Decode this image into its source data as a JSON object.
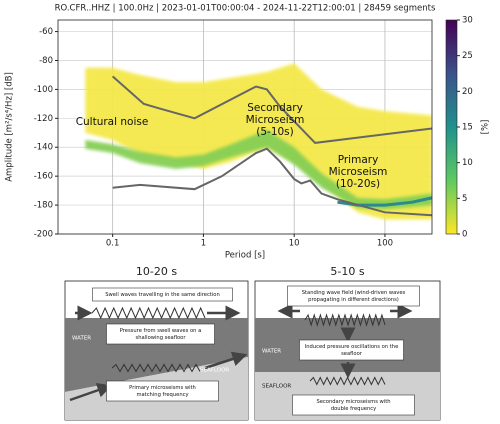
{
  "chart_data": {
    "type": "ppsd",
    "title": "RO.CFR..HHZ | 100.0Hz | 2023-01-01T00:00:04 - 2024-11-22T12:00:01 | 28459 segments",
    "xlabel": "Period [s]",
    "ylabel": "Amplitude [m²/s⁴/Hz] [dB]",
    "log_x": true,
    "grid": true,
    "xlim": [
      0.025,
      330
    ],
    "xticks": [
      0.1,
      1,
      10,
      100
    ],
    "ylim": [
      -200,
      -52
    ],
    "yticks": [
      -200,
      -180,
      -160,
      -140,
      -120,
      -100,
      -80,
      -60
    ],
    "bands": [
      {
        "color": "#f4e84a",
        "x": [
          0.05,
          0.1,
          0.2,
          0.5,
          1,
          2,
          5,
          10,
          20,
          50,
          100,
          330
        ],
        "upper": [
          -85,
          -85,
          -90,
          -95,
          -95,
          -92,
          -88,
          -82,
          -100,
          -112,
          -115,
          -118
        ],
        "lower": [
          -130,
          -135,
          -145,
          -150,
          -155,
          -150,
          -140,
          -150,
          -165,
          -185,
          -190,
          -190
        ]
      },
      {
        "color": "#86cf55",
        "x": [
          0.05,
          0.1,
          0.2,
          0.5,
          1,
          2,
          5,
          10,
          20,
          50,
          100,
          330
        ],
        "upper": [
          -135,
          -138,
          -143,
          -147,
          -145,
          -138,
          -128,
          -140,
          -158,
          -175,
          -176,
          -172
        ],
        "lower": [
          -141,
          -144,
          -151,
          -155,
          -153,
          -147,
          -140,
          -152,
          -168,
          -182,
          -183,
          -180
        ]
      }
    ],
    "lines": [
      {
        "color": "#2c8a8c",
        "x": [
          30,
          50,
          100,
          200,
          330
        ],
        "values": [
          -178,
          -180,
          -180,
          -178,
          -175
        ]
      },
      {
        "color": "#666666",
        "x": [
          0.1,
          0.22,
          0.32,
          0.8,
          3.8,
          5,
          7,
          17,
          330
        ],
        "values": [
          -91,
          -110,
          -113,
          -120,
          -98,
          -100,
          -112,
          -137,
          -127
        ]
      },
      {
        "color": "#666666",
        "x": [
          0.1,
          0.2,
          0.8,
          1.6,
          3.8,
          5,
          7,
          10,
          12,
          15,
          20,
          30,
          100,
          330
        ],
        "values": [
          -168,
          -166,
          -169,
          -160,
          -144,
          -141,
          -150,
          -162,
          -165,
          -163,
          -172,
          -176,
          -185,
          -187
        ]
      }
    ],
    "annotations": [
      [
        "Cultural noise"
      ],
      [
        "Secondary",
        "Microseism",
        "(5-10s)"
      ],
      [
        "Primary",
        "Microseism",
        "(10-20s)"
      ]
    ],
    "colorbar": {
      "label": "[%]",
      "lim": [
        0,
        30
      ],
      "ticks": [
        0,
        5,
        10,
        15,
        20,
        25,
        30
      ],
      "colors": [
        "#fde725",
        "#5ec962",
        "#21918c",
        "#3b528b",
        "#440154"
      ]
    }
  },
  "diagrams": [
    {
      "title": "10-20 s",
      "top_note": [
        "Swell waves travelling in the same direction"
      ],
      "pressure_note": [
        "Pressure from swell waves on a",
        "shallowing seafloor"
      ],
      "water": "WATER",
      "seafloor": "SEAFLOOR",
      "result": [
        "Primary microseisms with",
        "matching frequency"
      ]
    },
    {
      "title": "5-10 s",
      "top_note": [
        "Standing wave field (wind-driven waves",
        "propagating in different directions)"
      ],
      "pressure_note": [
        "Induced pressure oscillations on the",
        "seafloor"
      ],
      "water": "WATER",
      "seafloor": "SEAFLOOR",
      "result": [
        "Secondary microseisms with",
        "double frequency"
      ]
    }
  ]
}
